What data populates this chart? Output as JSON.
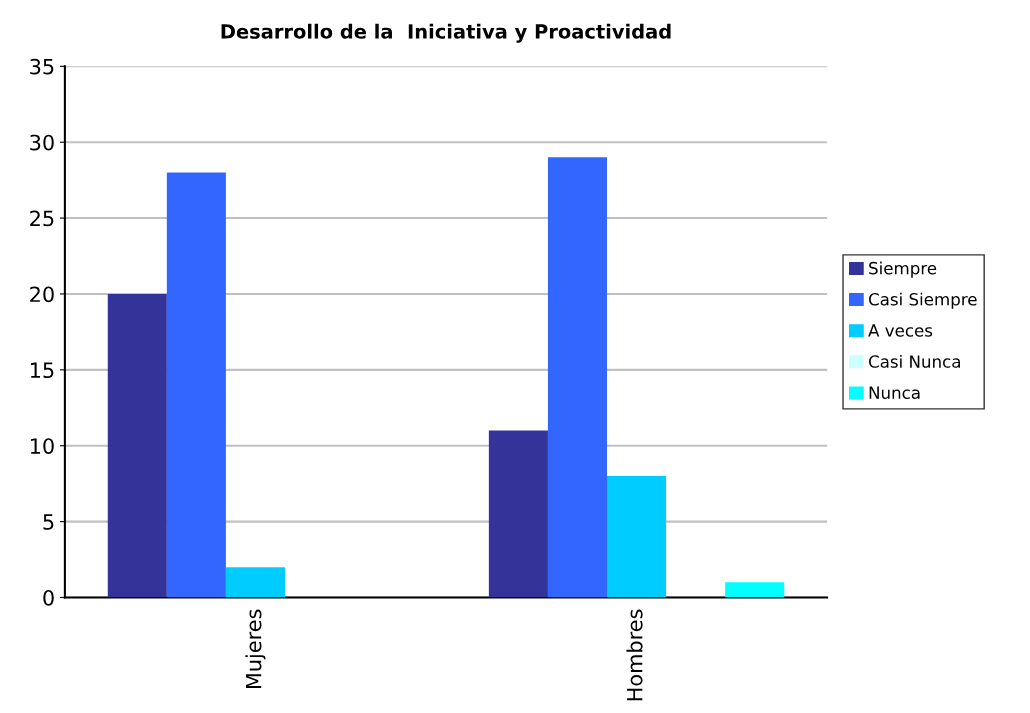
{
  "chart_data": {
    "type": "bar",
    "title": "Desarrollo de la  Iniciativa y Proactividad",
    "categories": [
      "Mujeres",
      "Hombres"
    ],
    "series": [
      {
        "name": "Siempre",
        "color": "#333399",
        "values": [
          20,
          11
        ]
      },
      {
        "name": "Casi Siempre",
        "color": "#3366ff",
        "values": [
          28,
          29
        ]
      },
      {
        "name": "A veces",
        "color": "#00ccff",
        "values": [
          2,
          8
        ]
      },
      {
        "name": "Casi Nunca",
        "color": "#ccffff",
        "values": [
          0,
          0
        ]
      },
      {
        "name": "Nunca",
        "color": "#00ffff",
        "values": [
          0,
          1
        ]
      }
    ],
    "ylim": [
      0,
      35
    ],
    "yticks": [
      0,
      5,
      10,
      15,
      20,
      25,
      30,
      35
    ],
    "grid": "y",
    "legend": "right"
  }
}
